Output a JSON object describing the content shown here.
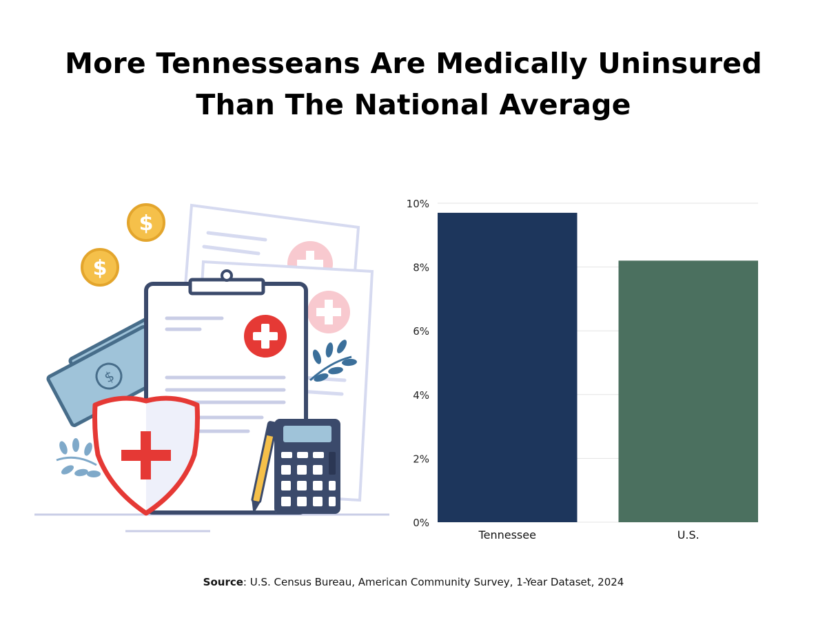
{
  "title": {
    "line1": "More Tennesseans Are Medically Uninsured",
    "line2": "Than The National Average"
  },
  "source": {
    "label": "Source",
    "text": ": U.S. Census Bureau, American Community Survey, 1-Year Dataset, 2024"
  },
  "illustration": {
    "icons": [
      "dollar-coin-icon",
      "dollar-coin-icon",
      "cash-bills-icon",
      "clipboard-icon",
      "medical-cross-icon",
      "shield-icon",
      "calculator-icon",
      "pen-icon",
      "leaf-branch-icon",
      "medical-document-icon"
    ],
    "colors": {
      "navy": "#3b4a6b",
      "red": "#e53935",
      "pink": "#f8c9cf",
      "cash": "#9fc3d9",
      "gold": "#f5c04a",
      "lavender": "#d6daf0"
    }
  },
  "chart_data": {
    "type": "bar",
    "categories": [
      "Tennessee",
      "U.S."
    ],
    "values": [
      9.7,
      8.2
    ],
    "colors": [
      "#1d365c",
      "#4b705f"
    ],
    "ylim": [
      0,
      10
    ],
    "yticks": [
      0,
      2,
      4,
      6,
      8,
      10
    ],
    "ytick_labels": [
      "0%",
      "2%",
      "4%",
      "6%",
      "8%",
      "10%"
    ],
    "grid": true,
    "legend": "none"
  }
}
